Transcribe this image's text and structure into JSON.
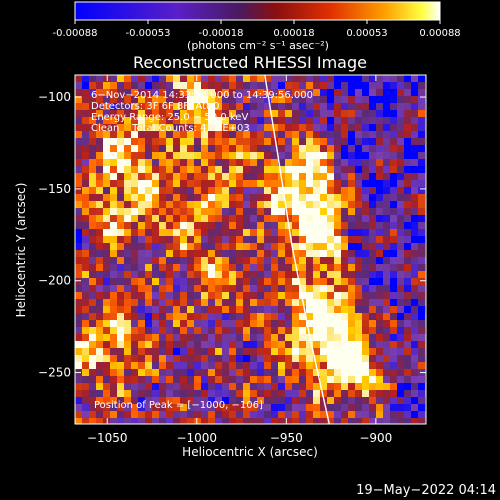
{
  "chart_data": {
    "type": "heatmap",
    "title": "Reconstructed RHESSI Image",
    "xlabel": "Heliocentric X (arcsec)",
    "ylabel": "Heliocentric Y (arcsec)",
    "xlim": [
      -1068,
      -872
    ],
    "ylim": [
      -278,
      -88
    ],
    "xticks": [
      -1050,
      -1000,
      -950,
      -900
    ],
    "yticks": [
      -100,
      -150,
      -200,
      -250
    ],
    "xtick_labels": [
      "−1050",
      "−1000",
      "−950",
      "−900"
    ],
    "ytick_labels": [
      "−100",
      "−150",
      "−200",
      "−250"
    ],
    "colorbar": {
      "range": [
        -0.00088,
        0.00088
      ],
      "ticks": [
        "-0.00088",
        "-0.00053",
        "-0.00018",
        "0.00018",
        "0.00053",
        "0.00088"
      ],
      "units": "(photons cm⁻² s⁻¹ asec⁻²)"
    },
    "annotations": [
      "6−Nov−2014 14:33:56.000 to 14:39:56.000",
      "Detectors: 3F 6F 8F, Att 0",
      "Energy Range: 25.0 − 50.0 keV",
      "Clean    Total Counts: 4.63E+03"
    ],
    "peak_label": "Position of Peak = [−1000, −106]",
    "limb_curve": [
      [
        -962,
        -88
      ],
      [
        -955,
        -130
      ],
      [
        -947,
        -180
      ],
      [
        -937,
        -230
      ],
      [
        -926,
        -278
      ]
    ],
    "grid": false,
    "legend": "none",
    "colormap": [
      "#0000ff",
      "#7b3fb0",
      "#5a2a7a",
      "#b02020",
      "#ff6000",
      "#ffd000",
      "#ffffff"
    ]
  },
  "timestamp": "19−May−2022 04:14"
}
